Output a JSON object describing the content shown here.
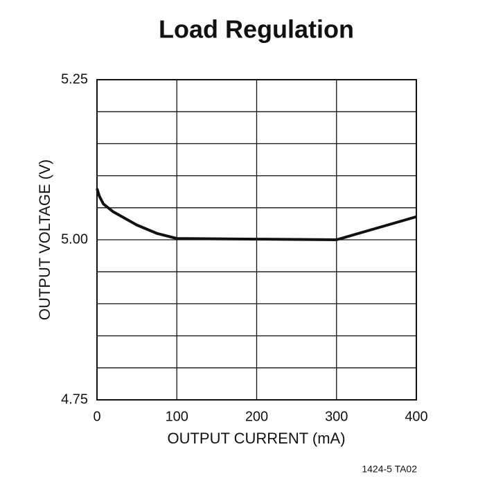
{
  "chart_data": {
    "type": "line",
    "title": "Load Regulation",
    "x_label": "OUTPUT CURRENT (mA)",
    "y_label": "OUTPUT VOLTAGE (V)",
    "footnote": "1424-5 TA02",
    "series": [
      {
        "color": "#111111",
        "x": [
          0,
          3,
          8,
          20,
          50,
          75,
          100,
          200,
          300,
          350,
          400
        ],
        "values": [
          5.08,
          5.068,
          5.056,
          5.044,
          5.023,
          5.01,
          5.002,
          5.001,
          5.0,
          5.018,
          5.036
        ]
      }
    ],
    "xlim": [
      0,
      400
    ],
    "xticks": [
      0,
      100,
      200,
      300,
      400
    ],
    "ylim": [
      4.75,
      5.25
    ],
    "yticks": [
      4.75,
      {
        "value": 5,
        "label": "5.00"
      },
      5.25
    ],
    "minor_yticks": [
      4.8,
      4.85,
      4.9,
      4.95,
      5.05,
      5.1,
      5.15,
      5.2
    ],
    "grid": true
  }
}
